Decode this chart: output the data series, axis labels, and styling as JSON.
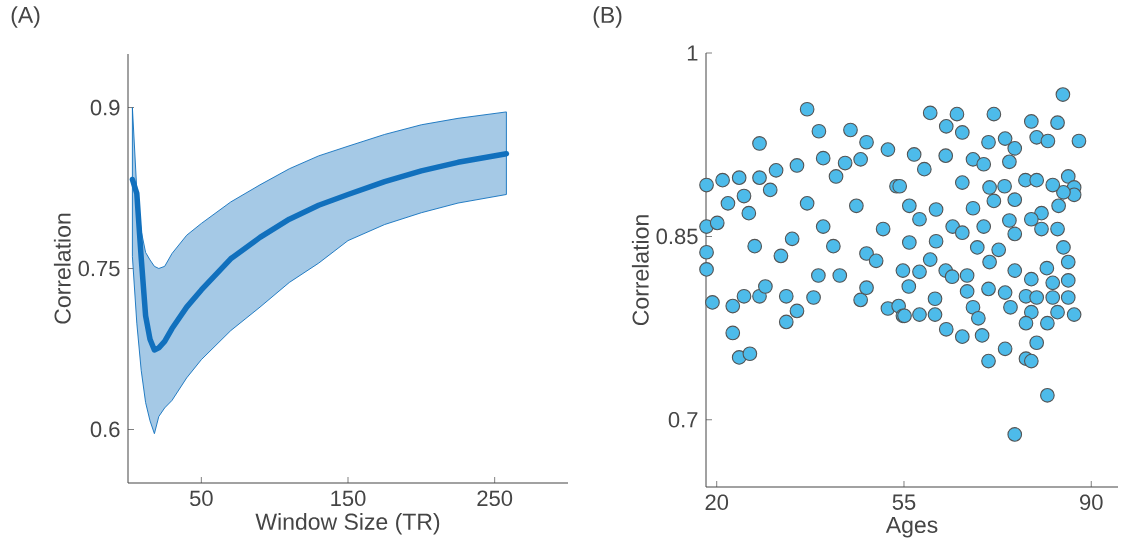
{
  "chart_data": [
    {
      "type": "line",
      "title": "(A)",
      "xlabel": "Window Size (TR)",
      "ylabel": "Correlation",
      "xlim": [
        0,
        300
      ],
      "ylim": [
        0.55,
        0.95
      ],
      "xticks": [
        50,
        150,
        250
      ],
      "yticks": [
        0.6,
        0.75,
        0.9
      ],
      "x": [
        3,
        6,
        9,
        12,
        15,
        18,
        21,
        25,
        30,
        40,
        50,
        70,
        90,
        110,
        130,
        150,
        175,
        200,
        225,
        258
      ],
      "series": [
        {
          "color": "#1170bd",
          "values": [
            0.833,
            0.82,
            0.76,
            0.706,
            0.684,
            0.674,
            0.676,
            0.682,
            0.694,
            0.714,
            0.73,
            0.759,
            0.779,
            0.796,
            0.809,
            0.819,
            0.831,
            0.841,
            0.849,
            0.857
          ],
          "upper": [
            0.9,
            0.823,
            0.785,
            0.765,
            0.758,
            0.752,
            0.75,
            0.752,
            0.764,
            0.781,
            0.792,
            0.812,
            0.828,
            0.843,
            0.855,
            0.864,
            0.875,
            0.884,
            0.89,
            0.896
          ],
          "lower": [
            0.761,
            0.699,
            0.655,
            0.625,
            0.608,
            0.596,
            0.612,
            0.62,
            0.627,
            0.648,
            0.665,
            0.692,
            0.714,
            0.737,
            0.755,
            0.776,
            0.791,
            0.802,
            0.811,
            0.819
          ]
        }
      ]
    },
    {
      "type": "scatter",
      "title": "(B)",
      "xlabel": "Ages",
      "ylabel": "Correlation",
      "xlim": [
        18,
        95
      ],
      "ylim": [
        0.645,
        1
      ],
      "xticks": [
        20,
        55,
        90
      ],
      "yticks": [
        0.7,
        0.85,
        1
      ],
      "marker": "circle",
      "x": [
        18.1,
        18.1,
        18.1,
        18.1,
        19.2,
        21.1,
        20.1,
        22.1,
        23.0,
        23.0,
        24.2,
        26.2,
        24.2,
        25.1,
        28.0,
        28.0,
        28.0,
        25.1,
        26.0,
        27.1,
        29.1,
        31.1,
        30.0,
        33.0,
        33.0,
        35.0,
        35.0,
        36.9,
        39.1,
        36.9,
        34.1,
        32.0,
        38.1,
        39.0,
        39.9,
        39.9,
        42.3,
        44.0,
        45.0,
        43.0,
        41.8,
        48.0,
        46.9,
        48.0,
        46.9,
        46.1,
        48.0,
        52.0,
        52.0,
        54.0,
        54.8,
        51.1,
        49.8,
        53.6,
        59.9,
        64.9,
        62.9,
        65.9,
        71.8,
        78.8,
        83.7,
        84.7,
        87.7,
        70.8,
        73.9,
        79.8,
        85.7,
        86.8,
        86.8,
        84.8,
        82.8,
        56.9,
        62.8,
        67.9,
        69.9,
        75.7,
        81.9,
        74.7,
        54.2,
        58.8,
        65.9,
        71.0,
        73.8,
        77.7,
        79.8,
        56.0,
        61.0,
        67.9,
        71.8,
        75.7,
        80.7,
        83.9,
        57.9,
        64.1,
        69.9,
        74.7,
        78.8,
        83.7,
        56.0,
        61.0,
        65.9,
        68.7,
        72.7,
        75.7,
        80.7,
        84.8,
        54.8,
        59.9,
        62.8,
        66.8,
        71.0,
        75.7,
        78.8,
        81.7,
        85.7,
        55.9,
        57.9,
        64.0,
        66.8,
        70.8,
        73.9,
        77.8,
        79.8,
        82.8,
        82.8,
        85.7,
        85.7,
        55.1,
        57.9,
        60.8,
        60.8,
        67.9,
        68.9,
        74.9,
        78.8,
        83.7,
        86.8,
        62.9,
        65.9,
        69.6,
        77.8,
        81.8,
        73.9,
        70.8,
        77.8,
        78.8,
        79.8,
        81.8,
        75.7
      ],
      "series": [
        {
          "color": "#4dbbea",
          "values": [
            0.892,
            0.858,
            0.837,
            0.823,
            0.796,
            0.896,
            0.861,
            0.877,
            0.793,
            0.771,
            0.751,
            0.754,
            0.898,
            0.883,
            0.926,
            0.898,
            0.801,
            0.801,
            0.869,
            0.842,
            0.809,
            0.904,
            0.888,
            0.78,
            0.801,
            0.789,
            0.908,
            0.954,
            0.936,
            0.877,
            0.848,
            0.834,
            0.8,
            0.818,
            0.914,
            0.858,
            0.899,
            0.91,
            0.937,
            0.818,
            0.842,
            0.927,
            0.798,
            0.808,
            0.913,
            0.875,
            0.836,
            0.921,
            0.791,
            0.793,
            0.785,
            0.856,
            0.83,
            0.891,
            0.951,
            0.95,
            0.94,
            0.935,
            0.95,
            0.944,
            0.943,
            0.966,
            0.928,
            0.927,
            0.93,
            0.931,
            0.899,
            0.89,
            0.884,
            0.886,
            0.892,
            0.917,
            0.916,
            0.913,
            0.909,
            0.922,
            0.928,
            0.911,
            0.891,
            0.905,
            0.894,
            0.89,
            0.891,
            0.896,
            0.896,
            0.875,
            0.872,
            0.873,
            0.879,
            0.88,
            0.869,
            0.875,
            0.864,
            0.858,
            0.858,
            0.863,
            0.864,
            0.856,
            0.845,
            0.846,
            0.853,
            0.841,
            0.839,
            0.852,
            0.856,
            0.841,
            0.822,
            0.831,
            0.822,
            0.818,
            0.829,
            0.822,
            0.815,
            0.824,
            0.829,
            0.809,
            0.821,
            0.817,
            0.805,
            0.807,
            0.804,
            0.801,
            0.8,
            0.812,
            0.8,
            0.8,
            0.814,
            0.785,
            0.786,
            0.799,
            0.786,
            0.792,
            0.783,
            0.792,
            0.788,
            0.788,
            0.786,
            0.774,
            0.768,
            0.769,
            0.779,
            0.779,
            0.758,
            0.748,
            0.75,
            0.748,
            0.763,
            0.72,
            0.688
          ]
        }
      ]
    }
  ]
}
